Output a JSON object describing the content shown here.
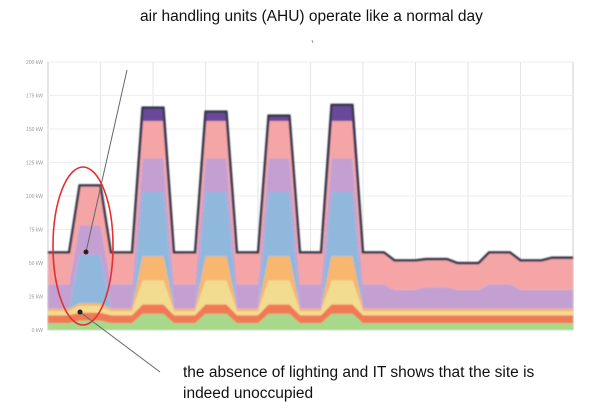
{
  "annotations": {
    "top": "air handling units (AHU) operate like a normal day",
    "bottom": "the absence of lighting and IT shows that the site is indeed unoccupied"
  },
  "chart_data": {
    "type": "area",
    "stacked": true,
    "title": "",
    "xlabel": "",
    "ylabel": "",
    "ylim": [
      0,
      200
    ],
    "yticks": [
      "0 kW",
      "25 kW",
      "50 kW",
      "75 kW",
      "100 kW",
      "125 kW",
      "150 kW",
      "175 kW",
      "200 kW"
    ],
    "grid": true,
    "legend": "none",
    "x": [
      0,
      2,
      4,
      6,
      8,
      10,
      12,
      14,
      16,
      18,
      20,
      22,
      24,
      26,
      28,
      30,
      32,
      34,
      36,
      38,
      40,
      42,
      44,
      46,
      48,
      50,
      52,
      54,
      56,
      58,
      60,
      62,
      64,
      66,
      68,
      70,
      72,
      74,
      76,
      78,
      80,
      82,
      84,
      86,
      88,
      90,
      92,
      94,
      96,
      98,
      100
    ],
    "series": [
      {
        "color": "#a8d88a",
        "values": [
          5,
          5,
          5,
          7,
          7,
          7,
          5,
          5,
          5,
          12,
          12,
          12,
          5,
          5,
          5,
          12,
          12,
          12,
          5,
          5,
          5,
          12,
          12,
          12,
          5,
          5,
          5,
          12,
          12,
          12,
          5,
          5,
          5,
          5,
          5,
          5,
          5,
          5,
          5,
          5,
          5,
          5,
          5,
          5,
          5,
          5,
          5,
          5,
          5,
          5,
          5
        ]
      },
      {
        "color": "#f07a56",
        "values": [
          6,
          6,
          6,
          6,
          6,
          6,
          6,
          6,
          6,
          7,
          7,
          7,
          6,
          6,
          6,
          7,
          7,
          7,
          6,
          6,
          6,
          7,
          7,
          7,
          6,
          6,
          6,
          7,
          7,
          7,
          6,
          6,
          6,
          6,
          6,
          6,
          6,
          6,
          6,
          6,
          6,
          6,
          6,
          6,
          6,
          6,
          6,
          6,
          6,
          6,
          6
        ]
      },
      {
        "color": "#f2dc90",
        "values": [
          3,
          3,
          3,
          5,
          5,
          5,
          3,
          3,
          3,
          18,
          18,
          18,
          3,
          3,
          3,
          18,
          18,
          18,
          3,
          3,
          3,
          18,
          18,
          18,
          3,
          3,
          3,
          18,
          18,
          18,
          3,
          3,
          3,
          3,
          3,
          3,
          3,
          3,
          3,
          3,
          3,
          3,
          3,
          3,
          3,
          3,
          3,
          3,
          3,
          3,
          3
        ]
      },
      {
        "color": "#f8b66e",
        "values": [
          2,
          2,
          2,
          2,
          2,
          2,
          2,
          2,
          2,
          18,
          18,
          18,
          2,
          2,
          2,
          18,
          18,
          18,
          2,
          2,
          2,
          18,
          18,
          18,
          2,
          2,
          2,
          18,
          18,
          18,
          2,
          2,
          2,
          2,
          2,
          2,
          2,
          2,
          2,
          2,
          2,
          2,
          2,
          2,
          2,
          2,
          2,
          2,
          2,
          2,
          2
        ]
      },
      {
        "color": "#8fb8dc",
        "values": [
          0,
          0,
          0,
          36,
          36,
          36,
          0,
          0,
          0,
          48,
          48,
          48,
          0,
          0,
          0,
          48,
          48,
          48,
          0,
          0,
          0,
          48,
          48,
          48,
          0,
          0,
          0,
          48,
          48,
          48,
          0,
          0,
          0,
          0,
          0,
          0,
          0,
          0,
          0,
          0,
          0,
          0,
          0,
          0,
          0,
          0,
          0,
          0,
          0,
          0,
          0
        ]
      },
      {
        "color": "#c4a0d2",
        "values": [
          18,
          18,
          18,
          22,
          22,
          22,
          18,
          18,
          18,
          25,
          25,
          25,
          18,
          18,
          18,
          25,
          25,
          25,
          18,
          18,
          18,
          25,
          25,
          25,
          18,
          18,
          18,
          25,
          25,
          25,
          18,
          18,
          18,
          14,
          14,
          14,
          16,
          16,
          16,
          14,
          14,
          14,
          18,
          18,
          18,
          14,
          14,
          14,
          14,
          14,
          14
        ]
      },
      {
        "color": "#f5a5a5",
        "values": [
          24,
          24,
          24,
          30,
          30,
          30,
          24,
          24,
          24,
          28,
          28,
          28,
          24,
          24,
          24,
          28,
          28,
          28,
          24,
          24,
          24,
          28,
          28,
          28,
          24,
          24,
          24,
          28,
          28,
          28,
          24,
          24,
          24,
          22,
          22,
          22,
          21,
          21,
          21,
          20,
          20,
          20,
          24,
          24,
          24,
          22,
          22,
          22,
          24,
          24,
          24
        ]
      },
      {
        "color": "#6b4a9c",
        "values": [
          0,
          0,
          0,
          0,
          0,
          0,
          0,
          0,
          0,
          10,
          10,
          10,
          0,
          0,
          0,
          7,
          7,
          7,
          0,
          0,
          0,
          4,
          4,
          4,
          0,
          0,
          0,
          12,
          12,
          12,
          0,
          0,
          0,
          0,
          0,
          0,
          0,
          0,
          0,
          0,
          0,
          0,
          0,
          0,
          0,
          0,
          0,
          0,
          0,
          0,
          0
        ]
      }
    ],
    "highlight": {
      "shape": "ellipse",
      "color": "#e23030"
    }
  }
}
